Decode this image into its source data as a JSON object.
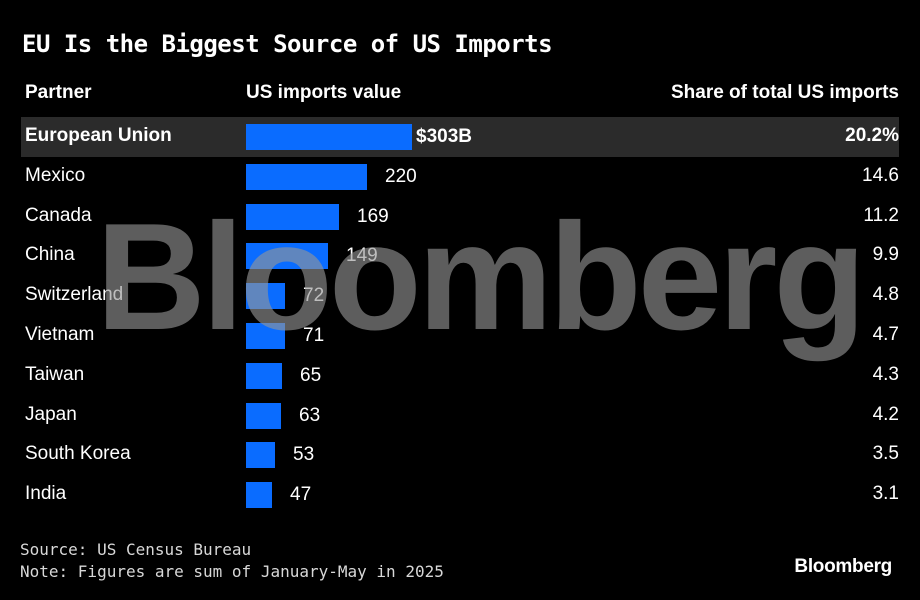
{
  "title": "EU Is the Biggest Source of US Imports",
  "headers": {
    "partner": "Partner",
    "value": "US imports value",
    "share": "Share of total US imports"
  },
  "colors": {
    "bar": "#0a6cff",
    "highlight_row": "#2b2b2b",
    "background": "#000000"
  },
  "watermark": "Bloomberg",
  "footer": {
    "source": "Source: US Census Bureau",
    "note": "Note: Figures are sum of January-May in 2025",
    "brand": "Bloomberg"
  },
  "chart_data": {
    "type": "bar",
    "orientation": "horizontal",
    "categories": [
      "European Union",
      "Mexico",
      "Canada",
      "China",
      "Switzerland",
      "Vietnam",
      "Taiwan",
      "Japan",
      "South Korea",
      "India"
    ],
    "values": [
      303,
      220,
      169,
      149,
      72,
      71,
      65,
      63,
      53,
      47
    ],
    "value_labels": [
      "$303B",
      "220",
      "169",
      "149",
      "72",
      "71",
      "65",
      "63",
      "53",
      "47"
    ],
    "shares": [
      "20.2%",
      "14.6",
      "11.2",
      "9.9",
      "4.8",
      "4.7",
      "4.3",
      "4.2",
      "3.5",
      "3.1"
    ],
    "highlighted_category": "European Union",
    "xlim": [
      0,
      303
    ]
  }
}
